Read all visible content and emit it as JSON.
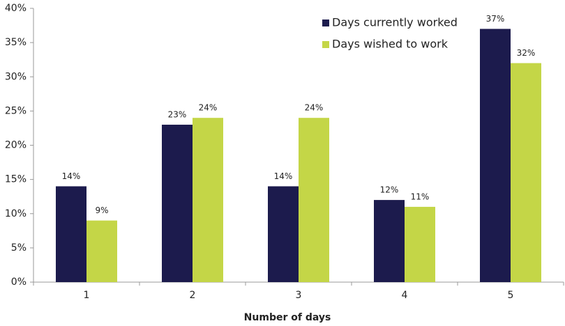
{
  "chart_data": {
    "type": "bar",
    "x_label": "Number of days",
    "categories": [
      "1",
      "2",
      "3",
      "4",
      "5"
    ],
    "series": [
      {
        "name": "Days currently worked",
        "color": "#1c1b4d",
        "values": [
          14,
          23,
          14,
          12,
          37
        ],
        "value_labels": [
          "14%",
          "23%",
          "14%",
          "12%",
          "37%"
        ]
      },
      {
        "name": "Days wished to work",
        "color": "#c4d647",
        "values": [
          9,
          24,
          24,
          11,
          32
        ],
        "value_labels": [
          "9%",
          "24%",
          "24%",
          "11%",
          "32%"
        ]
      }
    ],
    "ylim": [
      0,
      40
    ],
    "yticks": [
      {
        "value": 0,
        "label": "0%"
      },
      {
        "value": 5,
        "label": "5%"
      },
      {
        "value": 10,
        "label": "10%"
      },
      {
        "value": 15,
        "label": "15%"
      },
      {
        "value": 20,
        "label": "20%"
      },
      {
        "value": 25,
        "label": "25%"
      },
      {
        "value": 30,
        "label": "30%"
      },
      {
        "value": 35,
        "label": "35%"
      },
      {
        "value": 40,
        "label": "40%"
      }
    ],
    "grid": false,
    "legend": "top-right"
  }
}
